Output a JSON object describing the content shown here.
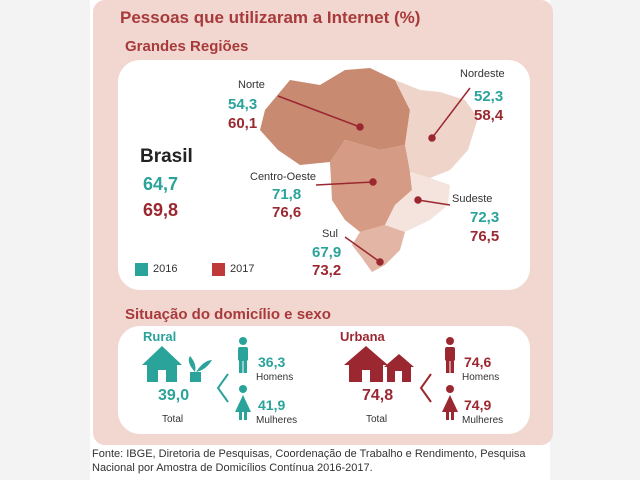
{
  "title": "Pessoas que utilizaram a Internet (%)",
  "subtitle_regions": "Grandes Regiões",
  "subtitle_situation": "Situação do domicílio e sexo",
  "colors": {
    "y2016": "#2aa39b",
    "y2017": "#9b2830"
  },
  "chart_data": [
    {
      "type": "table",
      "title": "Grandes Regiões",
      "series": [
        {
          "name": "2016"
        },
        {
          "name": "2017"
        }
      ],
      "rows": [
        {
          "region": "Brasil",
          "v2016": "64,7",
          "v2017": "69,8"
        },
        {
          "region": "Norte",
          "v2016": "54,3",
          "v2017": "60,1"
        },
        {
          "region": "Nordeste",
          "v2016": "52,3",
          "v2017": "58,4"
        },
        {
          "region": "Centro-Oeste",
          "v2016": "71,8",
          "v2017": "76,6"
        },
        {
          "region": "Sudeste",
          "v2016": "72,3",
          "v2017": "76,5"
        },
        {
          "region": "Sul",
          "v2016": "67,9",
          "v2017": "73,2"
        }
      ]
    },
    {
      "type": "table",
      "title": "Situação do domicílio e sexo",
      "rows": [
        {
          "situation": "Rural",
          "total": "39,0",
          "homens": "36,3",
          "mulheres": "41,9"
        },
        {
          "situation": "Urbana",
          "total": "74,8",
          "homens": "74,6",
          "mulheres": "74,9"
        }
      ]
    }
  ],
  "labels": {
    "total": "Total",
    "homens": "Homens",
    "mulheres": "Mulheres"
  },
  "legend": [
    {
      "label": "2016",
      "color": "#2aa39b"
    },
    {
      "label": "2017",
      "color": "#c0393a"
    }
  ],
  "source": "Fonte: IBGE, Diretoria de Pesquisas, Coordenação de Trabalho e Rendimento, Pesquisa Nacional por Amostra de Domicílios Contínua 2016-2017."
}
